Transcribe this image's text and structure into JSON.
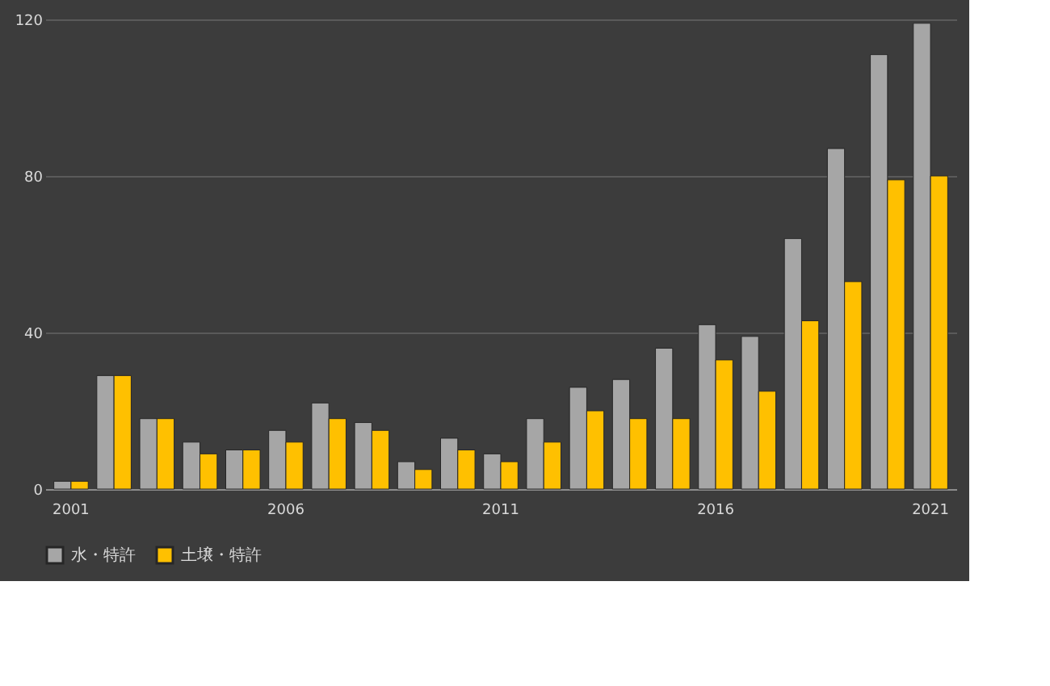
{
  "chart_data": {
    "type": "bar",
    "categories": [
      "2001",
      null,
      null,
      null,
      null,
      "2006",
      null,
      null,
      null,
      null,
      "2011",
      null,
      null,
      null,
      null,
      "2016",
      null,
      null,
      null,
      null,
      "2021"
    ],
    "series": [
      {
        "name": "水・特許",
        "color": "#a6a6a6",
        "values": [
          2,
          29,
          18,
          12,
          10,
          15,
          22,
          17,
          7,
          13,
          9,
          18,
          26,
          28,
          36,
          42,
          39,
          64,
          87,
          111,
          119
        ]
      },
      {
        "name": "土壌・特許",
        "color": "#ffc000",
        "values": [
          2,
          29,
          18,
          9,
          10,
          12,
          18,
          15,
          5,
          10,
          7,
          12,
          20,
          18,
          18,
          33,
          25,
          43,
          53,
          79,
          80
        ]
      }
    ],
    "ylim": [
      0,
      120
    ],
    "yticks": [
      0,
      40,
      80,
      120
    ],
    "grid": "y",
    "legend": "bottom"
  }
}
